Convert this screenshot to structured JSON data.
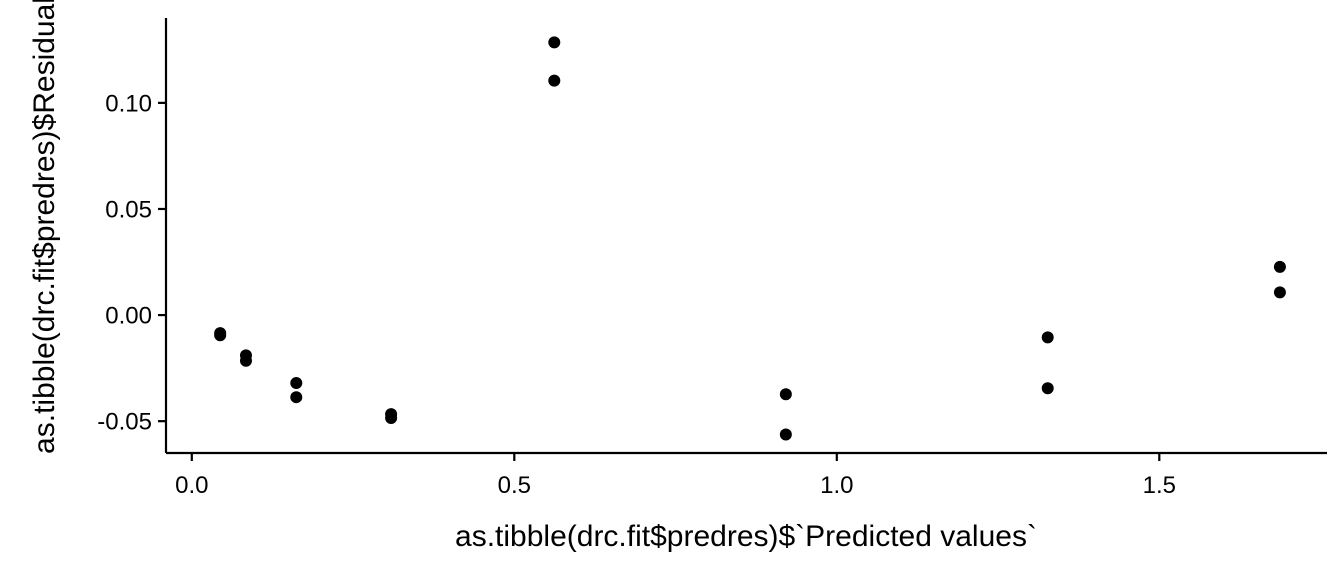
{
  "chart_data": {
    "type": "scatter",
    "title": "",
    "xlabel": "as.tibble(drc.fit$predres)$`Predicted values`",
    "ylabel": "as.tibble(drc.fit$predres)$Residuals",
    "xlim": [
      -0.04,
      1.76
    ],
    "ylim": [
      -0.065,
      0.14
    ],
    "x_ticks": [
      0.0,
      0.5,
      1.0,
      1.5
    ],
    "x_tick_labels": [
      "0.0",
      "0.5",
      "1.0",
      "1.5"
    ],
    "y_ticks": [
      -0.05,
      0.0,
      0.05,
      0.1
    ],
    "y_tick_labels": [
      "-0.05",
      "0.00",
      "0.05",
      "0.10"
    ],
    "grid": false,
    "legend": "none",
    "point_color": "#000000",
    "points": [
      {
        "x": 0.044,
        "y": -0.0085
      },
      {
        "x": 0.044,
        "y": -0.0095
      },
      {
        "x": 0.084,
        "y": -0.019
      },
      {
        "x": 0.084,
        "y": -0.0215
      },
      {
        "x": 0.162,
        "y": -0.032
      },
      {
        "x": 0.162,
        "y": -0.0387
      },
      {
        "x": 0.309,
        "y": -0.0467
      },
      {
        "x": 0.309,
        "y": -0.0485
      },
      {
        "x": 0.562,
        "y": 0.1285
      },
      {
        "x": 0.562,
        "y": 0.1105
      },
      {
        "x": 0.921,
        "y": -0.0373
      },
      {
        "x": 0.921,
        "y": -0.0563
      },
      {
        "x": 1.327,
        "y": -0.0105
      },
      {
        "x": 1.327,
        "y": -0.0345
      },
      {
        "x": 1.687,
        "y": 0.0227
      },
      {
        "x": 1.687,
        "y": 0.0107
      }
    ]
  }
}
